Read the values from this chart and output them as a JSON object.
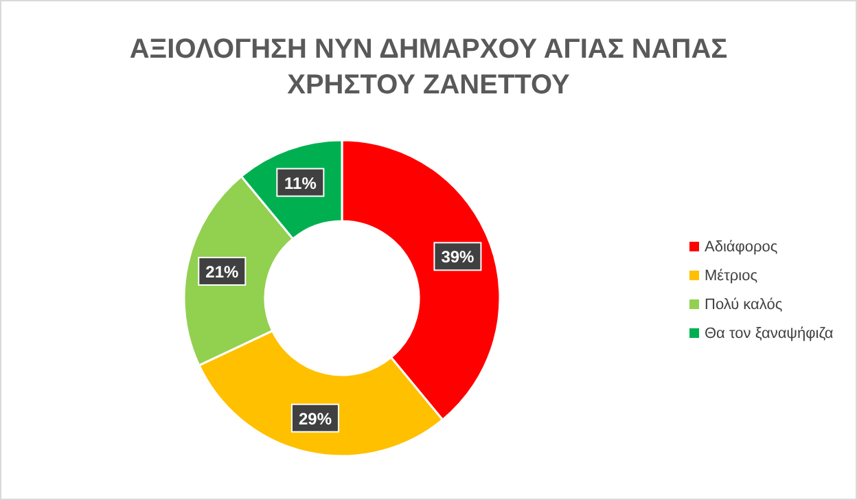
{
  "chart_data": {
    "type": "donut",
    "title": "ΑΞΙΟΛΟΓΗΣΗ ΝΥΝ ΔΗΜΑΡΧΟΥ ΑΓΙΑΣ ΝΑΠΑΣ ΧΡΗΣΤΟΥ ΖΑΝΕΤΤΟΥ",
    "categories": [
      "Αδιάφορος",
      "Μέτριος",
      "Πολύ καλός",
      "Θα τον ξαναψήφιζα"
    ],
    "values": [
      39,
      29,
      21,
      11
    ],
    "colors": [
      "#ff0000",
      "#ffc000",
      "#92d050",
      "#00b050"
    ],
    "value_labels": [
      "39%",
      "29%",
      "21%",
      "11%"
    ],
    "legend": "right"
  }
}
